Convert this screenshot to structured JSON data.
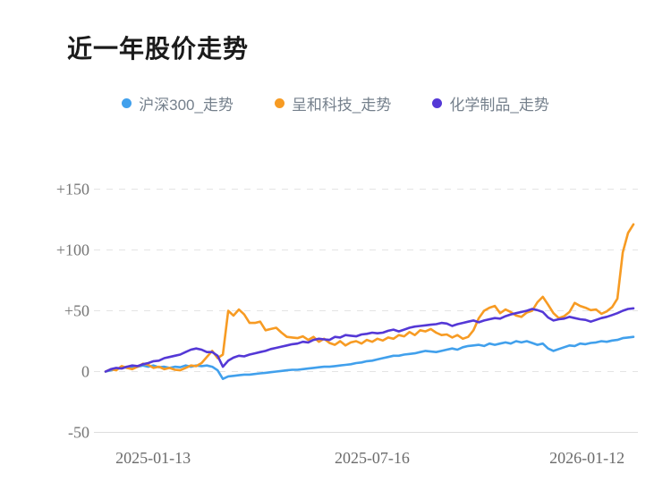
{
  "page": {
    "title": "近一年股价走势"
  },
  "legend": {
    "items": [
      {
        "label": "沪深300_走势",
        "color": "#41A0EC"
      },
      {
        "label": "呈和科技_走势",
        "color": "#F79B23"
      },
      {
        "label": "化学制品_走势",
        "color": "#5438D6"
      }
    ]
  },
  "chart_data": {
    "type": "line",
    "title": "近一年股价走势",
    "ylabel": "percent change (%)",
    "xlabel": "date",
    "ylim": [
      -50,
      150
    ],
    "grid": "horizontal-dashed",
    "legend_position": "top",
    "x_axis": {
      "tick_labels": [
        "2025-01-13",
        "2025-07-16",
        "2026-01-12"
      ],
      "tick_pos_pct": [
        9.0,
        50.5,
        91.2
      ]
    },
    "y_axis": {
      "tick_labels": [
        "+150",
        "+100",
        "+50",
        "0",
        "-50"
      ],
      "tick_values": [
        150,
        100,
        50,
        0,
        -50
      ]
    },
    "x_sampling": "uniform 0-100% of the one-year span, 100 points per series",
    "series": [
      {
        "name": "沪深300_走势",
        "color": "#41A0EC",
        "values": [
          0,
          1,
          2,
          3,
          4,
          3,
          4,
          5,
          4,
          5,
          3.5,
          4,
          3,
          4,
          3.5,
          5,
          4,
          5,
          4.5,
          5,
          4,
          1,
          -6,
          -4,
          -3.5,
          -3,
          -2.5,
          -2.5,
          -2,
          -1.5,
          -1,
          -0.5,
          0,
          0.5,
          1,
          1.5,
          1.5,
          2,
          2.5,
          3,
          3.5,
          4,
          4,
          4.5,
          5,
          5.5,
          6,
          7,
          7.5,
          8.5,
          9,
          10,
          11,
          12,
          13,
          13,
          14,
          14.5,
          15,
          16,
          17,
          16.5,
          16,
          17,
          18,
          19,
          18,
          20,
          21,
          21.5,
          22,
          21,
          23,
          22,
          23,
          24,
          23,
          25,
          24,
          25,
          23.5,
          22,
          23,
          19,
          17,
          18.5,
          20,
          21.5,
          21,
          23,
          22.5,
          23.5,
          24,
          25,
          24.5,
          25.5,
          26,
          27.5,
          28,
          28.5
        ]
      },
      {
        "name": "呈和科技_走势",
        "color": "#F79B23",
        "values": [
          0,
          2,
          1,
          4.5,
          3,
          2,
          4,
          6.5,
          5.5,
          3,
          4,
          2,
          3,
          1.5,
          1,
          3,
          5,
          4.5,
          7,
          12,
          17,
          11,
          14,
          50,
          46,
          51,
          47,
          40,
          40,
          41,
          34,
          35,
          36,
          32,
          28.5,
          28,
          27.5,
          29,
          26,
          28.5,
          24.5,
          27,
          23.5,
          22,
          25,
          21.5,
          24,
          25,
          23,
          26,
          24.5,
          27,
          25.5,
          28,
          27,
          30,
          29,
          32.5,
          30,
          34,
          33,
          35,
          32,
          30,
          30.5,
          28,
          30,
          27,
          28.5,
          34,
          44,
          50,
          52.5,
          54,
          48,
          51,
          49,
          46,
          45,
          48.5,
          50,
          57,
          61.5,
          55,
          48,
          44,
          45.5,
          49,
          56.5,
          54,
          52.5,
          50.5,
          51,
          47.5,
          49.5,
          53,
          60,
          98,
          114,
          121
        ]
      },
      {
        "name": "化学制品_走势",
        "color": "#5438D6",
        "values": [
          0,
          2,
          3,
          2.5,
          4,
          5,
          4.5,
          6,
          7,
          8.5,
          9,
          11,
          12,
          13,
          14,
          16,
          18,
          19,
          18,
          16,
          16,
          13,
          4,
          9,
          11.5,
          13,
          12.5,
          14,
          15,
          16,
          17,
          18.5,
          19.5,
          20.5,
          21.5,
          22.5,
          23,
          24.5,
          24,
          26,
          27,
          26.5,
          26,
          28.5,
          28,
          30,
          29.5,
          29,
          30.5,
          31,
          32,
          31.5,
          32,
          33.5,
          34.5,
          33,
          34.5,
          36,
          37,
          37.5,
          38,
          38.5,
          39,
          40,
          39.5,
          37.5,
          39,
          40,
          41,
          42,
          40.5,
          42,
          43,
          44,
          43.5,
          45.5,
          47,
          48,
          49,
          50,
          51.5,
          50.5,
          49,
          44.5,
          42,
          43,
          43.5,
          45,
          44,
          43,
          42.5,
          41,
          42.5,
          44,
          45,
          46.5,
          48,
          50,
          51.5,
          52
        ]
      }
    ]
  }
}
